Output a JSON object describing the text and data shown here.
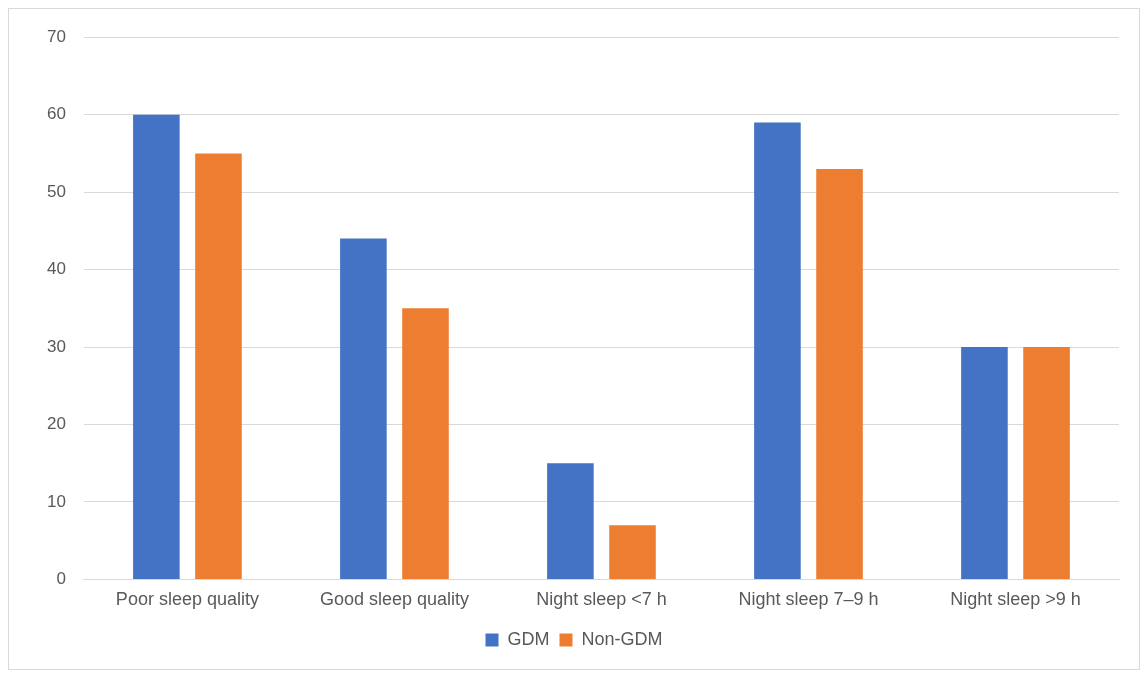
{
  "chart_data": {
    "type": "bar",
    "categories": [
      "Poor sleep quality",
      "Good sleep quality",
      "Night sleep <7 h",
      "Night sleep 7–9 h",
      "Night sleep >9 h"
    ],
    "series": [
      {
        "name": "GDM",
        "color": "#4472c4",
        "values": [
          60,
          44,
          15,
          59,
          30
        ]
      },
      {
        "name": "Non-GDM",
        "color": "#ed7d31",
        "values": [
          55,
          35,
          7,
          53,
          30
        ]
      }
    ],
    "ylim": [
      0,
      70
    ],
    "yticks": [
      0,
      10,
      20,
      30,
      40,
      50,
      60,
      70
    ],
    "grid": "y",
    "legend": "bottom"
  }
}
